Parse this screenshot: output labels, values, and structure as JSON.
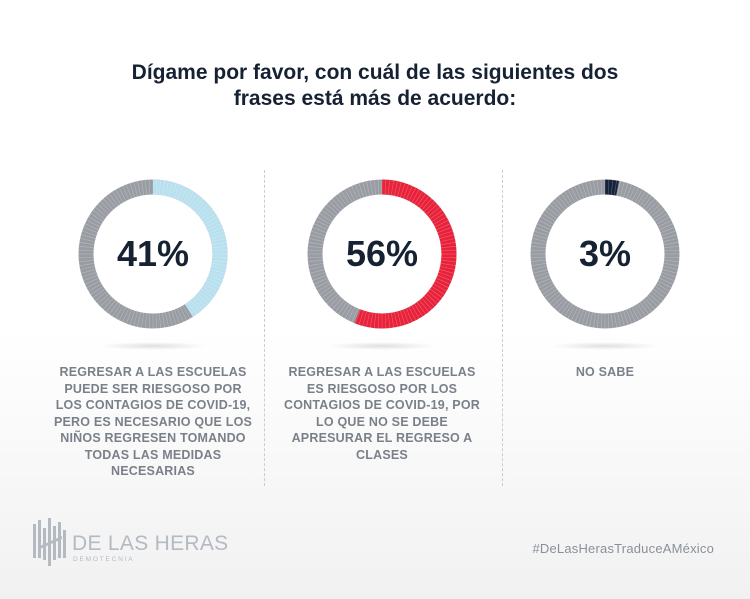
{
  "title_lines": [
    "Dígame por favor, con cuál de las siguientes dos",
    "frases está más de acuerdo:"
  ],
  "chart_data": {
    "type": "donut",
    "title": "Dígame por favor, con cuál de las siguientes dos frases está más de acuerdo:",
    "items": [
      {
        "value": 41,
        "display": "41%",
        "label": "Regresar a las escuelas puede ser riesgoso por los contagios de COVID-19, pero es necesario que los niños regresen tomando todas las medidas necesarias",
        "color": "#b9e0ee"
      },
      {
        "value": 56,
        "display": "56%",
        "label": "Regresar a las escuelas es riesgoso por los contagios de COVID-19, por lo que no se debe apresurar el regreso a clases",
        "color": "#e8223a"
      },
      {
        "value": 3,
        "display": "3%",
        "label": "No sabe",
        "color": "#15233a"
      }
    ],
    "track_color": "#999da3"
  },
  "logo": {
    "name": "DE LAS HERAS",
    "sub": "DEMOTECNIA"
  },
  "hashtag": "#DeLasHerasTraduceAMéxico"
}
